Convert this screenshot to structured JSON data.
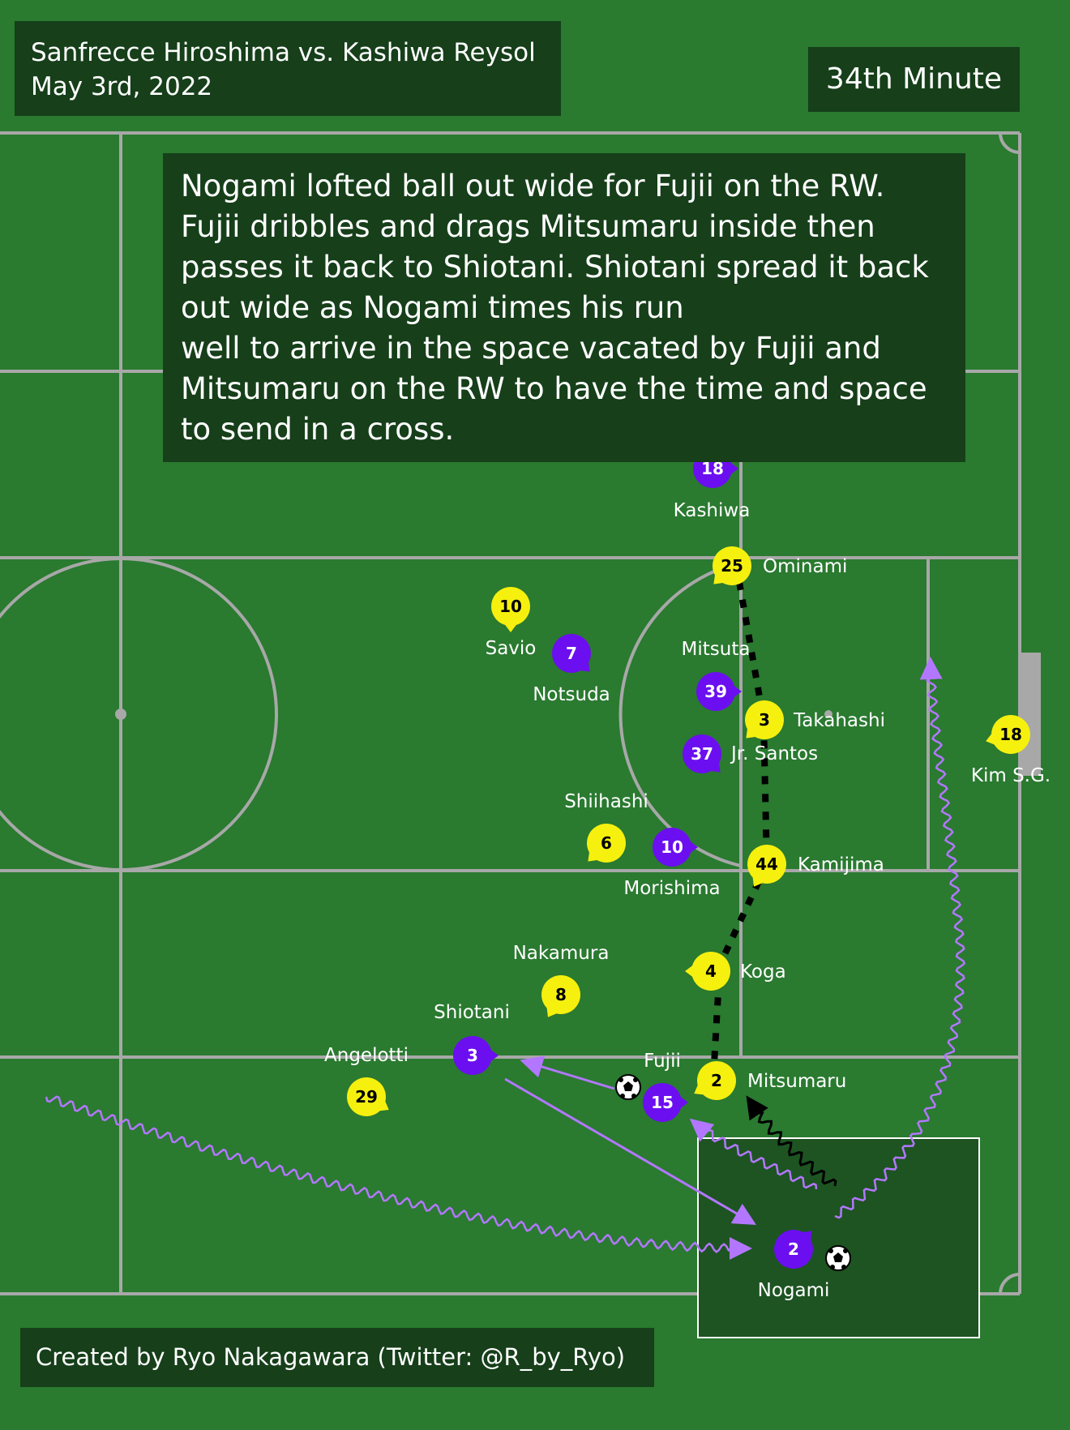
{
  "header": {
    "match": "Sanfrecce Hiroshima vs. Kashiwa Reysol",
    "date": "May 3rd, 2022",
    "minute": "34th Minute"
  },
  "description": [
    "Nogami lofted ball out wide for Fujii on the RW.",
    "Fujii dribbles and drags Mitsumaru inside then",
    "passes it back to Shiotani. Shiotani spread it back",
    "out wide as Nogami times his run",
    "well to arrive in the space vacated by Fujii and",
    "Mitsumaru on the RW to have the time and space",
    "to send in a cross."
  ],
  "credit": "Created by Ryo Nakagawara (Twitter: @R_by_Ryo)",
  "colors": {
    "pitch": "#2a7a30",
    "lines": "#a8a8a8",
    "hiroshima": "#6b0ff0",
    "kashiwa": "#f6f00e",
    "run": "#b377ff",
    "dark_panel": "#163f1a"
  },
  "teams": {
    "hiroshima": {
      "players": [
        {
          "number": "18",
          "name": "Kashiwa"
        },
        {
          "number": "7",
          "name": "Notsuda"
        },
        {
          "number": "39",
          "name": "Mitsuta"
        },
        {
          "number": "37",
          "name": "Jr. Santos"
        },
        {
          "number": "10",
          "name": "Morishima"
        },
        {
          "number": "3",
          "name": "Shiotani"
        },
        {
          "number": "15",
          "name": "Fujii"
        },
        {
          "number": "2",
          "name": "Nogami"
        }
      ]
    },
    "kashiwa": {
      "players": [
        {
          "number": "25",
          "name": "Ominami"
        },
        {
          "number": "10",
          "name": "Savio"
        },
        {
          "number": "3",
          "name": "Takahashi"
        },
        {
          "number": "18",
          "name": "Kim S.G."
        },
        {
          "number": "6",
          "name": "Shiihashi"
        },
        {
          "number": "44",
          "name": "Kamijima"
        },
        {
          "number": "8",
          "name": "Nakamura"
        },
        {
          "number": "4",
          "name": "Koga"
        },
        {
          "number": "29",
          "name": "Angelotti"
        },
        {
          "number": "2",
          "name": "Mitsumaru"
        }
      ]
    }
  }
}
